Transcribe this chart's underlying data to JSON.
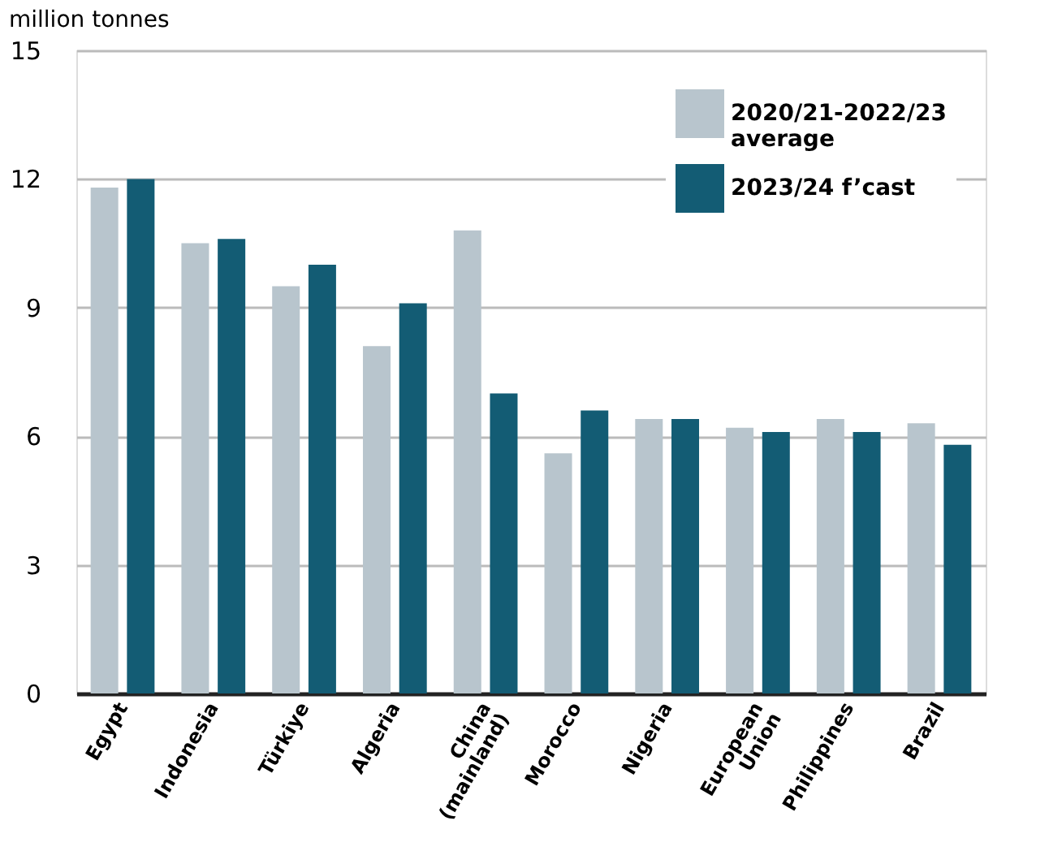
{
  "chart_data": {
    "type": "bar",
    "ylabel": "million tonnes",
    "categories": [
      "Egypt",
      "Indonesia",
      "Türkiye",
      "Algeria",
      "China\n(mainland)",
      "Morocco",
      "Nigeria",
      "European\nUnion",
      "Philippines",
      "Brazil"
    ],
    "series": [
      {
        "name": "2020/21-2022/23\naverage",
        "color": "#b8c5cd",
        "values": [
          11.8,
          10.5,
          9.5,
          8.1,
          10.8,
          5.6,
          6.4,
          6.2,
          6.4,
          6.3
        ]
      },
      {
        "name": "2023/24 f’cast",
        "color": "#135c74",
        "values": [
          12.0,
          10.6,
          10.0,
          9.1,
          7.0,
          6.6,
          6.4,
          6.1,
          6.1,
          5.8
        ]
      }
    ],
    "ylim": [
      0,
      15
    ],
    "yticks": [
      0,
      3,
      6,
      9,
      12,
      15
    ],
    "grid": "y",
    "legend": "top right"
  }
}
